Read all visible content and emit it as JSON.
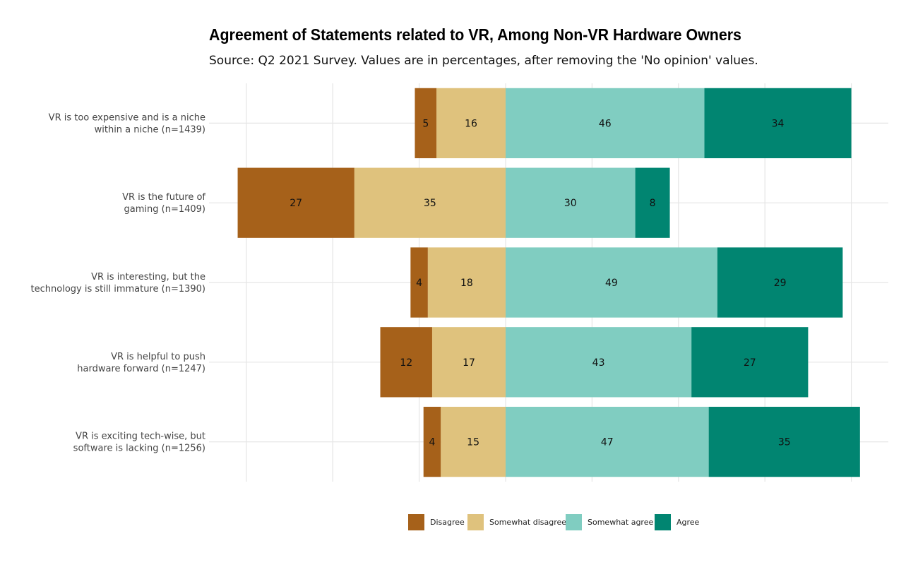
{
  "chart_data": {
    "type": "bar",
    "orientation": "horizontal-diverging-stacked",
    "title": "Agreement of Statements related to VR, Among Non-VR Hardware Owners",
    "subtitle": "Source: Q2 2021 Survey. Values are in percentages, after removing the 'No opinion' values.",
    "categories": [
      "VR is too expensive and is a niche\nwithin a niche (n=1439)",
      "VR is the future of\ngaming (n=1409)",
      "VR is interesting, but the\ntechnology is still immature (n=1390)",
      "VR is helpful to push\nhardware forward (n=1247)",
      "VR is exciting tech-wise, but\nsoftware is lacking (n=1256)"
    ],
    "series": [
      {
        "name": "Disagree",
        "side": "negative",
        "color": "#a6611a",
        "values": [
          5,
          27,
          4,
          12,
          4
        ]
      },
      {
        "name": "Somewhat disagree",
        "side": "negative",
        "color": "#dfc27d",
        "values": [
          16,
          35,
          18,
          17,
          15
        ]
      },
      {
        "name": "Somewhat agree",
        "side": "positive",
        "color": "#80cdc1",
        "values": [
          46,
          30,
          49,
          43,
          47
        ]
      },
      {
        "name": "Agree",
        "side": "positive",
        "color": "#018571",
        "values": [
          34,
          8,
          29,
          27,
          35
        ]
      }
    ],
    "xlim": [
      -62,
      90
    ],
    "grid": true,
    "legend_position": "bottom"
  }
}
